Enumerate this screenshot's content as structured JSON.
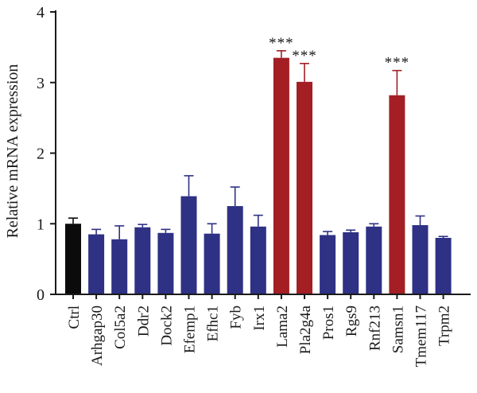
{
  "chart_data": {
    "type": "bar",
    "title": "",
    "xlabel": "",
    "ylabel": "Relative mRNA expression",
    "ylim": [
      0,
      4
    ],
    "yticks": [
      0,
      1,
      2,
      3,
      4
    ],
    "grid": false,
    "categories": [
      "Ctrl",
      "Arhgap30",
      "Col5a2",
      "Ddr2",
      "Dock2",
      "Efemp1",
      "Efhc1",
      "Fyb",
      "Irx1",
      "Lama2",
      "Pla2g4a",
      "Pros1",
      "Rgs9",
      "Rnf213",
      "Samsn1",
      "Tmem117",
      "Trpm2"
    ],
    "values": [
      1.0,
      0.85,
      0.78,
      0.95,
      0.87,
      1.39,
      0.86,
      1.25,
      0.96,
      3.35,
      3.01,
      0.84,
      0.88,
      0.96,
      2.82,
      0.98,
      0.8
    ],
    "errors": [
      0.08,
      0.07,
      0.19,
      0.04,
      0.05,
      0.29,
      0.14,
      0.27,
      0.16,
      0.1,
      0.26,
      0.05,
      0.03,
      0.04,
      0.35,
      0.13,
      0.02
    ],
    "significance": [
      "",
      "",
      "",
      "",
      "",
      "",
      "",
      "",
      "",
      "***",
      "***",
      "",
      "",
      "",
      "***",
      "",
      ""
    ],
    "bar_colors": [
      "#0b0b0b",
      "#2e3184",
      "#2e3184",
      "#2e3184",
      "#2e3184",
      "#2e3184",
      "#2e3184",
      "#2e3184",
      "#2e3184",
      "#a31f24",
      "#a31f24",
      "#2e3184",
      "#2e3184",
      "#2e3184",
      "#a31f24",
      "#2e3184",
      "#2e3184"
    ]
  }
}
